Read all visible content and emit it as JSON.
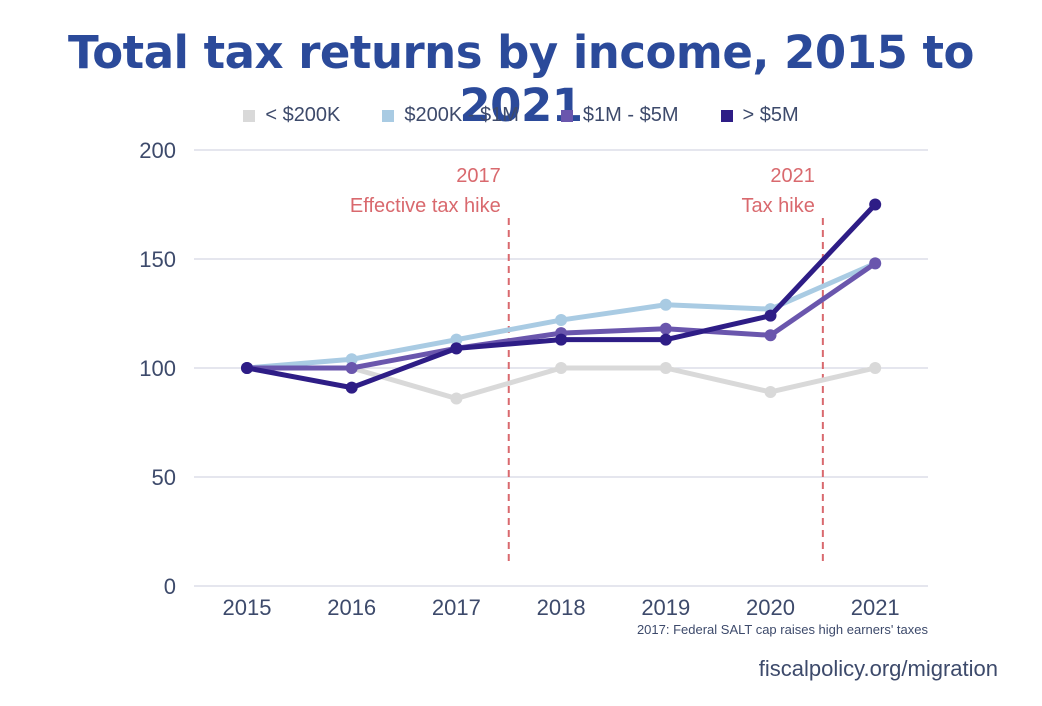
{
  "chart_data": {
    "type": "line",
    "title": "Total tax returns by income, 2015 to 2021",
    "xlabel": "",
    "ylabel": "",
    "x": [
      "2015",
      "2016",
      "2017",
      "2018",
      "2019",
      "2020",
      "2021"
    ],
    "ylim": [
      0,
      200
    ],
    "yticks": [
      0,
      50,
      100,
      150,
      200
    ],
    "grid": true,
    "legend_position": "top",
    "series": [
      {
        "name": "< $200K",
        "color": "#d9d9d9",
        "values": [
          100,
          100,
          86,
          100,
          100,
          89,
          100
        ]
      },
      {
        "name": "$200K - $1M",
        "color": "#a9cbe3",
        "values": [
          100,
          104,
          113,
          122,
          129,
          127,
          148
        ]
      },
      {
        "name": "$1M - $5M",
        "color": "#6a56ad",
        "values": [
          100,
          100,
          109,
          116,
          118,
          115,
          148
        ]
      },
      {
        "name": "> $5M",
        "color": "#2e1d86",
        "values": [
          100,
          91,
          109,
          113,
          113,
          124,
          175
        ]
      }
    ],
    "annotations": [
      {
        "x": 2017.5,
        "year": "2017",
        "label": "Effective tax hike",
        "color": "#d9696e"
      },
      {
        "x": 2020.5,
        "year": "2021",
        "label": "Tax hike",
        "color": "#d9696e"
      }
    ],
    "note": "2017: Federal SALT cap raises high earners' taxes",
    "source": "fiscalpolicy.org/migration"
  }
}
